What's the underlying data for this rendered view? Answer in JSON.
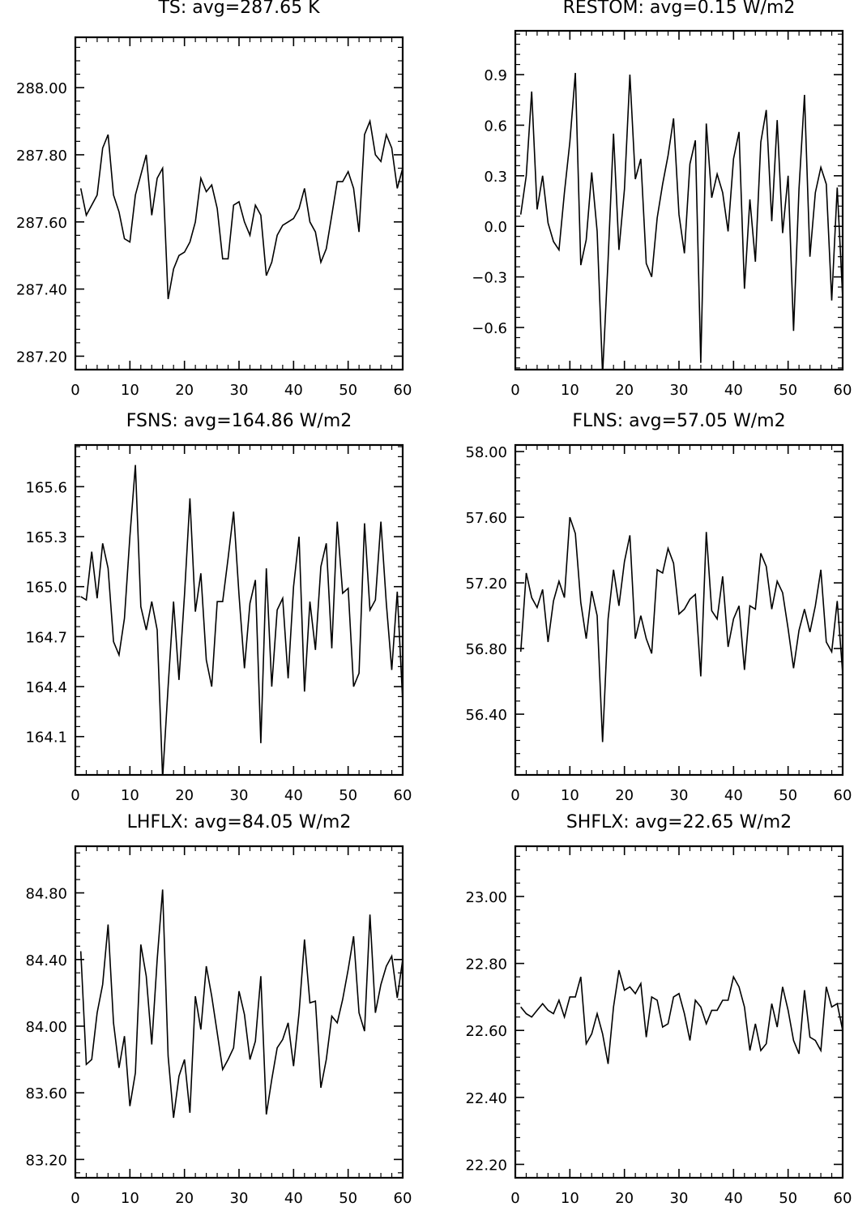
{
  "chart_data": [
    {
      "type": "line",
      "title": "TS: avg=287.65 K",
      "xlabel": "",
      "ylabel": "",
      "xlim": [
        0,
        60
      ],
      "ylim": [
        287.16,
        288.15
      ],
      "xticks": [
        0,
        10,
        20,
        30,
        40,
        50,
        60
      ],
      "xtick_labels": [
        "0",
        "10",
        "20",
        "30",
        "40",
        "50",
        "60"
      ],
      "yticks": [
        287.2,
        287.4,
        287.6,
        287.8,
        288.0
      ],
      "ytick_labels": [
        "287.20",
        "287.40",
        "287.60",
        "287.80",
        "288.00"
      ],
      "y_minor_step": 0.04,
      "grid": false,
      "series": [
        {
          "x": [
            1,
            2,
            3,
            4,
            5,
            6,
            7,
            8,
            9,
            10,
            11,
            12,
            13,
            14,
            15,
            16,
            17,
            18,
            19,
            20,
            21,
            22,
            23,
            24,
            25,
            26,
            27,
            28,
            29,
            30,
            31,
            32,
            33,
            34,
            35,
            36,
            37,
            38,
            39,
            40,
            41,
            42,
            43,
            44,
            45,
            46,
            47,
            48,
            49,
            50,
            51,
            52,
            53,
            54,
            55,
            56,
            57,
            58,
            59,
            60
          ],
          "values": [
            287.7,
            287.62,
            287.65,
            287.68,
            287.82,
            287.86,
            287.68,
            287.63,
            287.55,
            287.54,
            287.68,
            287.74,
            287.8,
            287.62,
            287.73,
            287.76,
            287.37,
            287.46,
            287.5,
            287.51,
            287.54,
            287.6,
            287.73,
            287.69,
            287.71,
            287.64,
            287.49,
            287.49,
            287.65,
            287.66,
            287.6,
            287.56,
            287.65,
            287.62,
            287.44,
            287.48,
            287.56,
            287.59,
            287.6,
            287.61,
            287.64,
            287.7,
            287.6,
            287.57,
            287.48,
            287.52,
            287.62,
            287.72,
            287.72,
            287.75,
            287.7,
            287.57,
            287.86,
            287.9,
            287.8,
            287.78,
            287.86,
            287.82,
            287.7,
            287.76
          ]
        }
      ]
    },
    {
      "type": "line",
      "title": "RESTOM: avg=0.15 W/m2",
      "xlabel": "",
      "ylabel": "",
      "xlim": [
        0,
        60
      ],
      "ylim": [
        -0.85,
        1.16
      ],
      "xticks": [
        0,
        10,
        20,
        30,
        40,
        50,
        60
      ],
      "xtick_labels": [
        "0",
        "10",
        "20",
        "30",
        "40",
        "50",
        "60"
      ],
      "yticks": [
        -0.6,
        -0.3,
        0.0,
        0.3,
        0.6,
        0.9
      ],
      "ytick_labels": [
        "−0.6",
        "−0.3",
        "0.0",
        "0.3",
        "0.6",
        "0.9"
      ],
      "y_minor_step": 0.06,
      "grid": false,
      "series": [
        {
          "x": [
            1,
            2,
            3,
            4,
            5,
            6,
            7,
            8,
            9,
            10,
            11,
            12,
            13,
            14,
            15,
            16,
            17,
            18,
            19,
            20,
            21,
            22,
            23,
            24,
            25,
            26,
            27,
            28,
            29,
            30,
            31,
            32,
            33,
            34,
            35,
            36,
            37,
            38,
            39,
            40,
            41,
            42,
            43,
            44,
            45,
            46,
            47,
            48,
            49,
            50,
            51,
            52,
            53,
            54,
            55,
            56,
            57,
            58,
            59,
            60
          ],
          "values": [
            0.07,
            0.3,
            0.8,
            0.1,
            0.3,
            0.02,
            -0.09,
            -0.14,
            0.2,
            0.5,
            0.91,
            -0.23,
            -0.08,
            0.32,
            -0.03,
            -0.88,
            -0.2,
            0.55,
            -0.14,
            0.22,
            0.9,
            0.28,
            0.4,
            -0.22,
            -0.3,
            0.05,
            0.25,
            0.42,
            0.64,
            0.07,
            -0.16,
            0.37,
            0.51,
            -0.81,
            0.61,
            0.17,
            0.31,
            0.2,
            -0.03,
            0.4,
            0.56,
            -0.37,
            0.16,
            -0.21,
            0.5,
            0.69,
            0.03,
            0.63,
            -0.04,
            0.3,
            -0.62,
            0.22,
            0.78,
            -0.18,
            0.2,
            0.35,
            0.25,
            -0.44,
            0.23,
            -0.42
          ]
        }
      ]
    },
    {
      "type": "line",
      "title": "FSNS: avg=164.86 W/m2",
      "xlabel": "",
      "ylabel": "",
      "xlim": [
        0,
        60
      ],
      "ylim": [
        163.87,
        165.85
      ],
      "xticks": [
        0,
        10,
        20,
        30,
        40,
        50,
        60
      ],
      "xtick_labels": [
        "0",
        "10",
        "20",
        "30",
        "40",
        "50",
        "60"
      ],
      "yticks": [
        164.1,
        164.4,
        164.7,
        165.0,
        165.3,
        165.6
      ],
      "ytick_labels": [
        "164.1",
        "164.4",
        "164.7",
        "165.0",
        "165.3",
        "165.6"
      ],
      "y_minor_step": 0.06,
      "grid": false,
      "series": [
        {
          "x": [
            1,
            2,
            3,
            4,
            5,
            6,
            7,
            8,
            9,
            10,
            11,
            12,
            13,
            14,
            15,
            16,
            17,
            18,
            19,
            20,
            21,
            22,
            23,
            24,
            25,
            26,
            27,
            28,
            29,
            30,
            31,
            32,
            33,
            34,
            35,
            36,
            37,
            38,
            39,
            40,
            41,
            42,
            43,
            44,
            45,
            46,
            47,
            48,
            49,
            50,
            51,
            52,
            53,
            54,
            55,
            56,
            57,
            58,
            59,
            60
          ],
          "values": [
            164.94,
            164.92,
            165.21,
            164.93,
            165.26,
            165.11,
            164.67,
            164.59,
            164.81,
            165.3,
            165.73,
            164.88,
            164.74,
            164.91,
            164.74,
            163.85,
            164.4,
            164.91,
            164.44,
            164.95,
            165.53,
            164.85,
            165.08,
            164.56,
            164.4,
            164.91,
            164.91,
            165.17,
            165.45,
            164.95,
            164.51,
            164.9,
            165.04,
            164.06,
            165.11,
            164.4,
            164.86,
            164.93,
            164.45,
            165.0,
            165.3,
            164.37,
            164.91,
            164.62,
            165.12,
            165.26,
            164.63,
            165.39,
            164.96,
            164.99,
            164.4,
            164.48,
            165.38,
            164.86,
            164.92,
            165.39,
            164.9,
            164.5,
            164.97,
            164.31
          ]
        }
      ]
    },
    {
      "type": "line",
      "title": "FLNS: avg=57.05 W/m2",
      "xlabel": "",
      "ylabel": "",
      "xlim": [
        0,
        60
      ],
      "ylim": [
        56.03,
        58.04
      ],
      "xticks": [
        0,
        10,
        20,
        30,
        40,
        50,
        60
      ],
      "xtick_labels": [
        "0",
        "10",
        "20",
        "30",
        "40",
        "50",
        "60"
      ],
      "yticks": [
        56.4,
        56.8,
        57.2,
        57.6,
        58.0
      ],
      "ytick_labels": [
        "56.40",
        "56.80",
        "57.20",
        "57.60",
        "58.00"
      ],
      "y_minor_step": 0.08,
      "grid": false,
      "series": [
        {
          "x": [
            1,
            2,
            3,
            4,
            5,
            6,
            7,
            8,
            9,
            10,
            11,
            12,
            13,
            14,
            15,
            16,
            17,
            18,
            19,
            20,
            21,
            22,
            23,
            24,
            25,
            26,
            27,
            28,
            29,
            30,
            31,
            32,
            33,
            34,
            35,
            36,
            37,
            38,
            39,
            40,
            41,
            42,
            43,
            44,
            45,
            46,
            47,
            48,
            49,
            50,
            51,
            52,
            53,
            54,
            55,
            56,
            57,
            58,
            59,
            60
          ],
          "values": [
            56.78,
            57.26,
            57.11,
            57.05,
            57.16,
            56.84,
            57.09,
            57.21,
            57.11,
            57.6,
            57.5,
            57.08,
            56.86,
            57.15,
            57.0,
            56.23,
            56.98,
            57.28,
            57.06,
            57.33,
            57.49,
            56.86,
            57.0,
            56.86,
            56.77,
            57.28,
            57.26,
            57.41,
            57.32,
            57.01,
            57.04,
            57.1,
            57.13,
            56.63,
            57.51,
            57.03,
            56.98,
            57.24,
            56.81,
            56.98,
            57.06,
            56.67,
            57.06,
            57.04,
            57.38,
            57.3,
            57.04,
            57.21,
            57.14,
            56.92,
            56.68,
            56.91,
            57.04,
            56.9,
            57.06,
            57.28,
            56.84,
            56.78,
            57.09,
            56.65
          ]
        }
      ]
    },
    {
      "type": "line",
      "title": "LHFLX: avg=84.05 W/m2",
      "xlabel": "",
      "ylabel": "",
      "xlim": [
        0,
        60
      ],
      "ylim": [
        83.09,
        85.08
      ],
      "xticks": [
        0,
        10,
        20,
        30,
        40,
        50,
        60
      ],
      "xtick_labels": [
        "0",
        "10",
        "20",
        "30",
        "40",
        "50",
        "60"
      ],
      "yticks": [
        83.2,
        83.6,
        84.0,
        84.4,
        84.8
      ],
      "ytick_labels": [
        "83.20",
        "83.60",
        "84.00",
        "84.40",
        "84.80"
      ],
      "y_minor_step": 0.08,
      "grid": false,
      "series": [
        {
          "x": [
            1,
            2,
            3,
            4,
            5,
            6,
            7,
            8,
            9,
            10,
            11,
            12,
            13,
            14,
            15,
            16,
            17,
            18,
            19,
            20,
            21,
            22,
            23,
            24,
            25,
            26,
            27,
            28,
            29,
            30,
            31,
            32,
            33,
            34,
            35,
            36,
            37,
            38,
            39,
            40,
            41,
            42,
            43,
            44,
            45,
            46,
            47,
            48,
            49,
            50,
            51,
            52,
            53,
            54,
            55,
            56,
            57,
            58,
            59,
            60
          ],
          "values": [
            84.45,
            83.77,
            83.8,
            84.08,
            84.25,
            84.61,
            84.02,
            83.75,
            83.94,
            83.52,
            83.72,
            84.49,
            84.3,
            83.89,
            84.4,
            84.82,
            83.82,
            83.45,
            83.7,
            83.8,
            83.48,
            84.18,
            83.98,
            84.36,
            84.18,
            83.96,
            83.74,
            83.8,
            83.87,
            84.21,
            84.07,
            83.8,
            83.91,
            84.3,
            83.47,
            83.68,
            83.87,
            83.92,
            84.02,
            83.76,
            84.08,
            84.52,
            84.14,
            84.15,
            83.63,
            83.8,
            84.06,
            84.02,
            84.16,
            84.34,
            84.54,
            84.08,
            83.97,
            84.67,
            84.08,
            84.25,
            84.36,
            84.42,
            84.17,
            84.4
          ]
        }
      ]
    },
    {
      "type": "line",
      "title": "SHFLX: avg=22.65 W/m2",
      "xlabel": "",
      "ylabel": "",
      "xlim": [
        0,
        60
      ],
      "ylim": [
        22.16,
        23.15
      ],
      "xticks": [
        0,
        10,
        20,
        30,
        40,
        50,
        60
      ],
      "xtick_labels": [
        "0",
        "10",
        "20",
        "30",
        "40",
        "50",
        "60"
      ],
      "yticks": [
        22.2,
        22.4,
        22.6,
        22.8,
        23.0
      ],
      "ytick_labels": [
        "22.20",
        "22.40",
        "22.60",
        "22.80",
        "23.00"
      ],
      "y_minor_step": 0.04,
      "grid": false,
      "series": [
        {
          "x": [
            1,
            2,
            3,
            4,
            5,
            6,
            7,
            8,
            9,
            10,
            11,
            12,
            13,
            14,
            15,
            16,
            17,
            18,
            19,
            20,
            21,
            22,
            23,
            24,
            25,
            26,
            27,
            28,
            29,
            30,
            31,
            32,
            33,
            34,
            35,
            36,
            37,
            38,
            39,
            40,
            41,
            42,
            43,
            44,
            45,
            46,
            47,
            48,
            49,
            50,
            51,
            52,
            53,
            54,
            55,
            56,
            57,
            58,
            59,
            60
          ],
          "values": [
            22.67,
            22.65,
            22.64,
            22.66,
            22.68,
            22.66,
            22.65,
            22.69,
            22.64,
            22.7,
            22.7,
            22.76,
            22.56,
            22.59,
            22.65,
            22.59,
            22.5,
            22.67,
            22.78,
            22.72,
            22.73,
            22.71,
            22.74,
            22.58,
            22.7,
            22.69,
            22.61,
            22.62,
            22.7,
            22.71,
            22.65,
            22.57,
            22.69,
            22.67,
            22.62,
            22.66,
            22.66,
            22.69,
            22.69,
            22.76,
            22.73,
            22.67,
            22.54,
            22.62,
            22.54,
            22.56,
            22.68,
            22.61,
            22.73,
            22.66,
            22.57,
            22.53,
            22.72,
            22.58,
            22.57,
            22.54,
            22.73,
            22.67,
            22.68,
            22.6
          ]
        }
      ]
    }
  ]
}
